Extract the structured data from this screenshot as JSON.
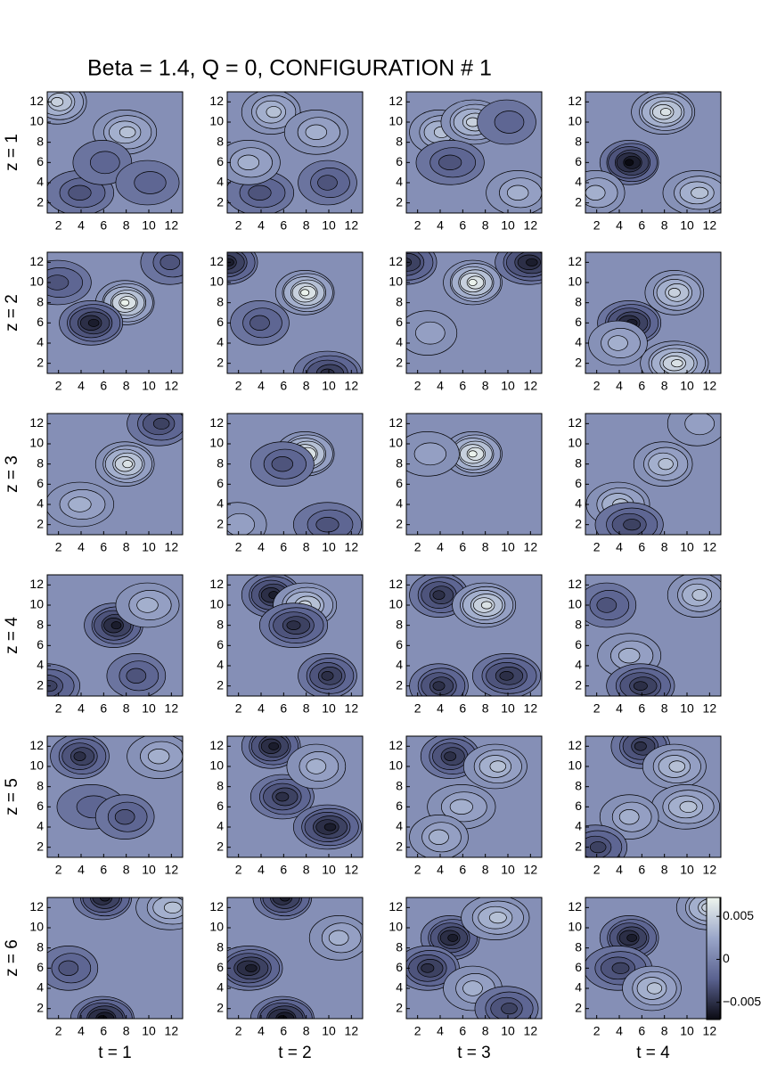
{
  "chart_data": {
    "type": "contour",
    "title": "Beta = 1.4,  Q = 0, CONFIGURATION # 1",
    "row_labels": [
      "z = 1",
      "z = 2",
      "z = 3",
      "z = 4",
      "z = 5",
      "z = 6"
    ],
    "col_labels": [
      "t = 1",
      "t = 2",
      "t = 3",
      "t = 4"
    ],
    "xlim": [
      1,
      13
    ],
    "ylim": [
      1,
      13
    ],
    "xticks": [
      2,
      4,
      6,
      8,
      10,
      12
    ],
    "yticks": [
      2,
      4,
      6,
      8,
      10,
      12
    ],
    "colormap": [
      "#0a0a12",
      "#5a6290",
      "#9aa6c9",
      "#eef5ee"
    ],
    "colorbar": {
      "lim": [
        -0.007,
        0.0072
      ],
      "ticks": [
        0.005,
        0,
        {
          "value": -0.005,
          "label": "−0.005"
        }
      ]
    },
    "panels": [
      [
        {
          "peaks": [
            {
              "x": 2,
              "y": 12,
              "v": 0.005
            },
            {
              "x": 8,
              "y": 9,
              "v": 0.004
            },
            {
              "x": 4,
              "y": 3,
              "v": -0.003
            },
            {
              "x": 6,
              "y": 6,
              "v": -0.002
            },
            {
              "x": 10,
              "y": 4,
              "v": -0.002
            }
          ]
        },
        {
          "peaks": [
            {
              "x": 5,
              "y": 11,
              "v": 0.004
            },
            {
              "x": 9,
              "y": 9,
              "v": 0.003
            },
            {
              "x": 4,
              "y": 3,
              "v": -0.003
            },
            {
              "x": 10,
              "y": 4,
              "v": -0.003
            },
            {
              "x": 3,
              "y": 6,
              "v": 0.003
            }
          ]
        },
        {
          "peaks": [
            {
              "x": 4,
              "y": 9,
              "v": 0.004
            },
            {
              "x": 7,
              "y": 10,
              "v": 0.005
            },
            {
              "x": 5,
              "y": 6,
              "v": -0.003
            },
            {
              "x": 10,
              "y": 10,
              "v": -0.002
            },
            {
              "x": 11,
              "y": 3,
              "v": 0.003
            }
          ]
        },
        {
          "peaks": [
            {
              "x": 5,
              "y": 6,
              "v": -0.007
            },
            {
              "x": 8,
              "y": 11,
              "v": 0.006
            },
            {
              "x": 11,
              "y": 3,
              "v": 0.004
            },
            {
              "x": 2,
              "y": 3,
              "v": 0.003
            }
          ]
        }
      ],
      [
        {
          "peaks": [
            {
              "x": 8,
              "y": 8,
              "v": 0.007
            },
            {
              "x": 5,
              "y": 6,
              "v": -0.006
            },
            {
              "x": 2,
              "y": 10,
              "v": -0.003
            },
            {
              "x": 12,
              "y": 12,
              "v": -0.003
            }
          ]
        },
        {
          "peaks": [
            {
              "x": 8,
              "y": 9,
              "v": 0.007
            },
            {
              "x": 1,
              "y": 12,
              "v": -0.006
            },
            {
              "x": 10,
              "y": 1,
              "v": -0.005
            },
            {
              "x": 4,
              "y": 6,
              "v": -0.003
            }
          ]
        },
        {
          "peaks": [
            {
              "x": 7,
              "y": 10,
              "v": 0.007
            },
            {
              "x": 1,
              "y": 12,
              "v": -0.005
            },
            {
              "x": 12,
              "y": 12,
              "v": -0.006
            },
            {
              "x": 3,
              "y": 5,
              "v": 0.002
            }
          ]
        },
        {
          "peaks": [
            {
              "x": 9,
              "y": 9,
              "v": 0.005
            },
            {
              "x": 5,
              "y": 6,
              "v": -0.006
            },
            {
              "x": 9,
              "y": 2,
              "v": 0.006
            },
            {
              "x": 4,
              "y": 4,
              "v": 0.003
            }
          ]
        }
      ],
      [
        {
          "peaks": [
            {
              "x": 8,
              "y": 8,
              "v": 0.006
            },
            {
              "x": 11,
              "y": 12,
              "v": -0.004
            },
            {
              "x": 4,
              "y": 4,
              "v": 0.003
            }
          ]
        },
        {
          "peaks": [
            {
              "x": 8,
              "y": 9,
              "v": 0.007
            },
            {
              "x": 6,
              "y": 8,
              "v": -0.003
            },
            {
              "x": 10,
              "y": 2,
              "v": -0.003
            },
            {
              "x": 2,
              "y": 2,
              "v": 0.002
            }
          ]
        },
        {
          "peaks": [
            {
              "x": 7,
              "y": 9,
              "v": 0.007
            },
            {
              "x": 3,
              "y": 9,
              "v": 0.002
            }
          ]
        },
        {
          "peaks": [
            {
              "x": 8,
              "y": 8,
              "v": 0.004
            },
            {
              "x": 4,
              "y": 4,
              "v": 0.004
            },
            {
              "x": 5,
              "y": 2,
              "v": -0.004
            },
            {
              "x": 11,
              "y": 12,
              "v": 0.002
            }
          ]
        }
      ],
      [
        {
          "peaks": [
            {
              "x": 7,
              "y": 8,
              "v": -0.006
            },
            {
              "x": 10,
              "y": 10,
              "v": 0.003
            },
            {
              "x": 1,
              "y": 2,
              "v": -0.004
            },
            {
              "x": 9,
              "y": 3,
              "v": -0.003
            }
          ]
        },
        {
          "peaks": [
            {
              "x": 5,
              "y": 11,
              "v": -0.006
            },
            {
              "x": 8,
              "y": 10,
              "v": 0.005
            },
            {
              "x": 7,
              "y": 8,
              "v": -0.005
            },
            {
              "x": 10,
              "y": 3,
              "v": -0.005
            }
          ]
        },
        {
          "peaks": [
            {
              "x": 4,
              "y": 11,
              "v": -0.005
            },
            {
              "x": 8,
              "y": 10,
              "v": 0.006
            },
            {
              "x": 10,
              "y": 3,
              "v": -0.005
            },
            {
              "x": 4,
              "y": 2,
              "v": -0.005
            }
          ]
        },
        {
          "peaks": [
            {
              "x": 11,
              "y": 11,
              "v": 0.004
            },
            {
              "x": 5,
              "y": 5,
              "v": 0.003
            },
            {
              "x": 6,
              "y": 2,
              "v": -0.005
            },
            {
              "x": 3,
              "y": 10,
              "v": -0.003
            }
          ]
        }
      ],
      [
        {
          "peaks": [
            {
              "x": 4,
              "y": 11,
              "v": -0.005
            },
            {
              "x": 11,
              "y": 11,
              "v": 0.003
            },
            {
              "x": 5,
              "y": 6,
              "v": -0.002
            },
            {
              "x": 8,
              "y": 5,
              "v": -0.003
            }
          ]
        },
        {
          "peaks": [
            {
              "x": 5,
              "y": 12,
              "v": -0.006
            },
            {
              "x": 6,
              "y": 7,
              "v": -0.005
            },
            {
              "x": 10,
              "y": 4,
              "v": -0.006
            },
            {
              "x": 9,
              "y": 10,
              "v": 0.003
            }
          ]
        },
        {
          "peaks": [
            {
              "x": 5,
              "y": 11,
              "v": -0.005
            },
            {
              "x": 9,
              "y": 10,
              "v": 0.004
            },
            {
              "x": 6,
              "y": 6,
              "v": 0.003
            },
            {
              "x": 4,
              "y": 3,
              "v": 0.003
            }
          ]
        },
        {
          "peaks": [
            {
              "x": 6,
              "y": 12,
              "v": -0.005
            },
            {
              "x": 9,
              "y": 10,
              "v": 0.004
            },
            {
              "x": 10,
              "y": 6,
              "v": 0.004
            },
            {
              "x": 5,
              "y": 5,
              "v": 0.003
            },
            {
              "x": 2,
              "y": 2,
              "v": -0.004
            }
          ]
        }
      ],
      [
        {
          "peaks": [
            {
              "x": 6,
              "y": 13,
              "v": -0.006
            },
            {
              "x": 6,
              "y": 1,
              "v": -0.007
            },
            {
              "x": 12,
              "y": 12,
              "v": 0.004
            },
            {
              "x": 3,
              "y": 6,
              "v": -0.003
            }
          ]
        },
        {
          "peaks": [
            {
              "x": 6,
              "y": 13,
              "v": -0.006
            },
            {
              "x": 6,
              "y": 1,
              "v": -0.007
            },
            {
              "x": 3,
              "y": 6,
              "v": -0.006
            },
            {
              "x": 11,
              "y": 9,
              "v": 0.003
            }
          ]
        },
        {
          "peaks": [
            {
              "x": 5,
              "y": 9,
              "v": -0.006
            },
            {
              "x": 3,
              "y": 6,
              "v": -0.005
            },
            {
              "x": 9,
              "y": 11,
              "v": 0.004
            },
            {
              "x": 7,
              "y": 4,
              "v": 0.003
            },
            {
              "x": 10,
              "y": 2,
              "v": -0.004
            }
          ]
        },
        {
          "peaks": [
            {
              "x": 5,
              "y": 9,
              "v": -0.006
            },
            {
              "x": 12,
              "y": 12,
              "v": 0.005
            },
            {
              "x": 4,
              "y": 6,
              "v": -0.004
            },
            {
              "x": 7,
              "y": 4,
              "v": 0.004
            }
          ]
        }
      ]
    ]
  }
}
